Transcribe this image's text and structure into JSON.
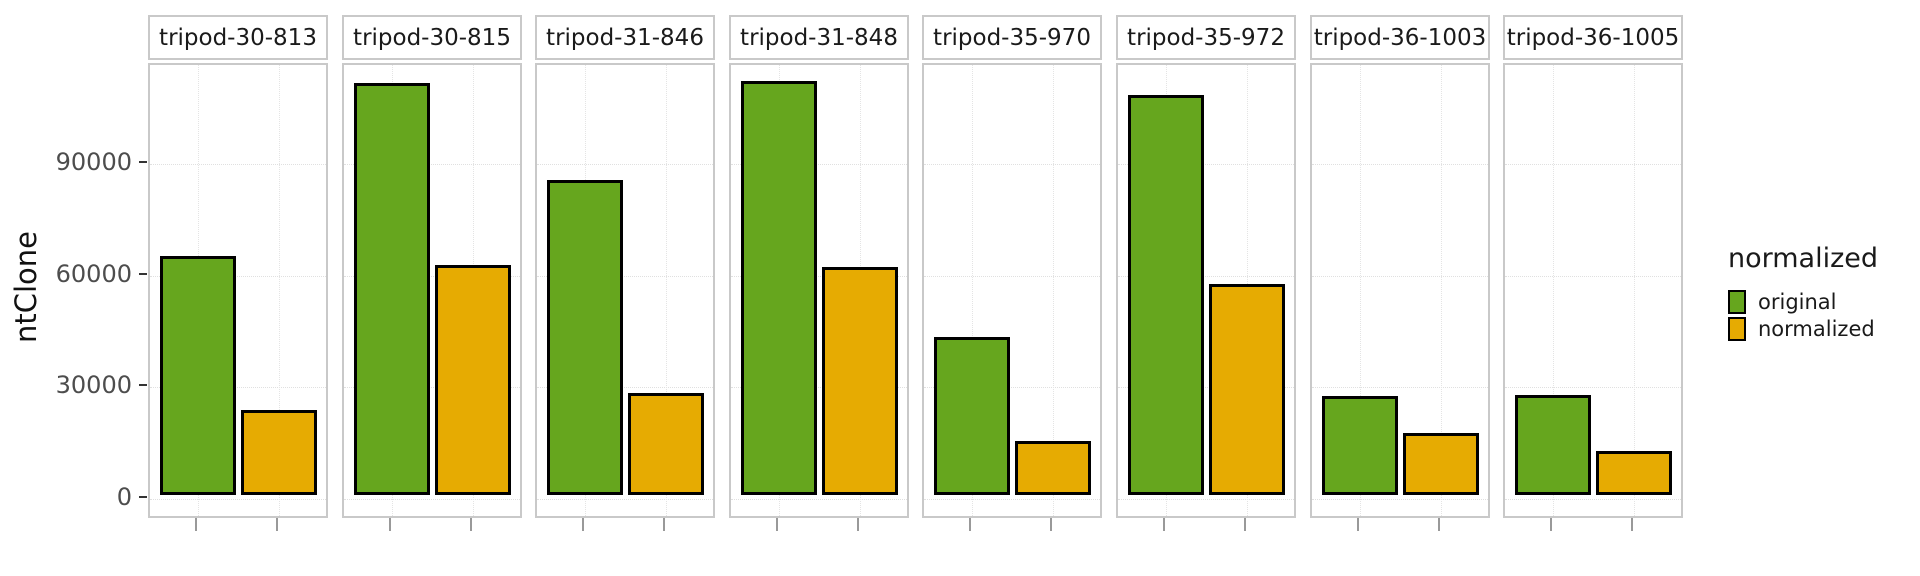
{
  "figure": {
    "y_axis_title": "ntClone"
  },
  "chart_data": {
    "type": "bar",
    "faceted": true,
    "categories": [
      "original",
      "normalized"
    ],
    "facets": [
      {
        "title": "tripod-30-813",
        "original": 64100,
        "normalized": 22700
      },
      {
        "title": "tripod-30-815",
        "original": 110700,
        "normalized": 61900
      },
      {
        "title": "tripod-31-846",
        "original": 84700,
        "normalized": 27400
      },
      {
        "title": "tripod-31-848",
        "original": 111300,
        "normalized": 61200
      },
      {
        "title": "tripod-35-970",
        "original": 42400,
        "normalized": 14400
      },
      {
        "title": "tripod-35-972",
        "original": 107500,
        "normalized": 56700
      },
      {
        "title": "tripod-36-1003",
        "original": 26500,
        "normalized": 16700
      },
      {
        "title": "tripod-36-1005",
        "original": 26900,
        "normalized": 11700
      }
    ],
    "ylabel": "ntClone",
    "xlabel": "",
    "y_ticks": [
      0,
      30000,
      60000,
      90000
    ],
    "y_tick_labels": [
      "0",
      "30000",
      "60000",
      "90000"
    ],
    "ylim": [
      -5700,
      116500
    ],
    "grid": "dotted horizontal lines at y ticks, dotted vertical lines at bar centers",
    "legend": {
      "title": "normalized",
      "position": "right",
      "entries": [
        {
          "label": "original",
          "color": "#66A61E"
        },
        {
          "label": "normalized",
          "color": "#E6AB02"
        }
      ]
    },
    "colors": {
      "original": "#66A61E",
      "normalized": "#E6AB02",
      "bar_outline": "#000000",
      "panel_border": "#C9C9C9",
      "grid_line": "#E0E0E0",
      "y_tick_text": "#4D4D4D",
      "y_tick_mark": "#333333",
      "x_tick_mark": "#999999"
    }
  }
}
